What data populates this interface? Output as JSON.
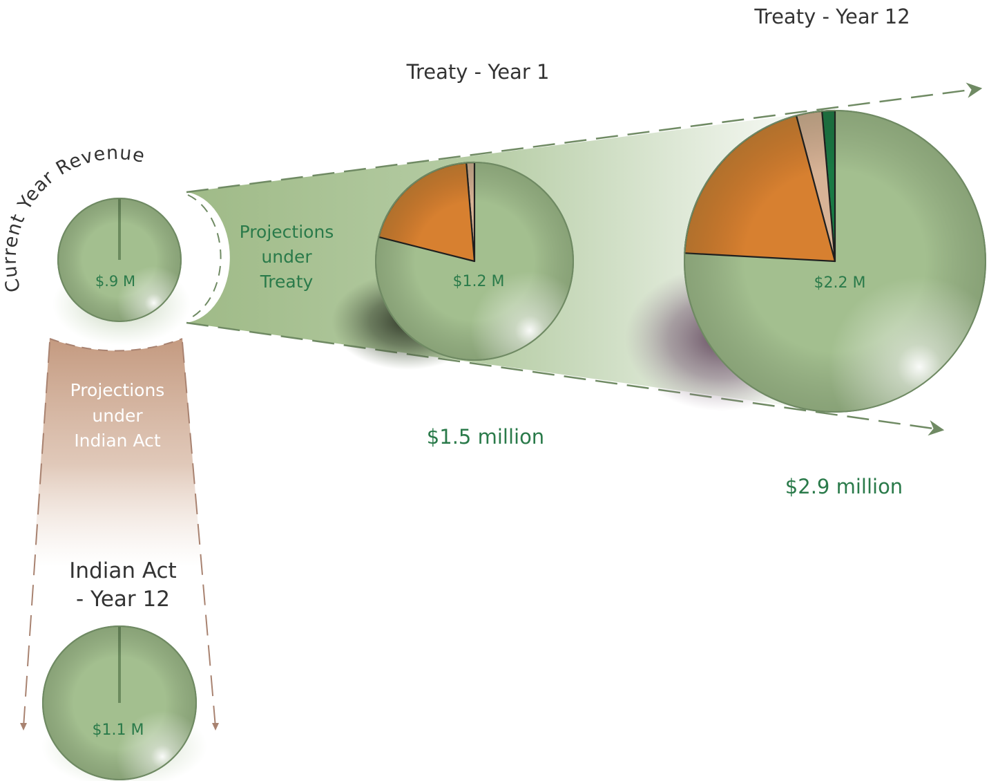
{
  "labels": {
    "current_year_revenue": "Current Year Revenue",
    "treaty_year_1": "Treaty - Year 1",
    "treaty_year_12": "Treaty - Year 12",
    "projections_treaty": [
      "Projections",
      "under",
      "Treaty"
    ],
    "projections_indian_act": [
      "Projections",
      "under",
      "Indian Act"
    ],
    "indian_act_year_12": [
      "Indian Act",
      "- Year 12"
    ],
    "treaty_year_1_total": "$1.5 million",
    "treaty_year_12_total": "$2.9 million"
  },
  "colors": {
    "main_green": "#a3bf8f",
    "orange": "#d78030",
    "tan": "#d8b396",
    "dark_green": "#1a7a45",
    "label_green": "#2a7a4a",
    "band_green": "#9fba87",
    "band_brown": "#c49a80",
    "dash_green": "#6f8a63",
    "dash_brown": "#a88270"
  },
  "chart_data": [
    {
      "type": "pie",
      "id": "current",
      "center_label": "$.9 M",
      "slices": [
        {
          "color": "main_green",
          "value": 0.9
        }
      ]
    },
    {
      "type": "pie",
      "id": "treaty_year_1",
      "center_label": "$1.2 M",
      "slices": [
        {
          "color": "main_green",
          "value": 1.2
        },
        {
          "color": "orange",
          "value": 0.3
        },
        {
          "color": "tan",
          "value": 0.02
        }
      ]
    },
    {
      "type": "pie",
      "id": "treaty_year_12",
      "center_label": "$2.2 M",
      "slices": [
        {
          "color": "main_green",
          "value": 2.2
        },
        {
          "color": "orange",
          "value": 0.58
        },
        {
          "color": "tan",
          "value": 0.08
        },
        {
          "color": "dark_green",
          "value": 0.04
        }
      ]
    },
    {
      "type": "pie",
      "id": "indian_act_year_12",
      "center_label": "$1.1 M",
      "slices": [
        {
          "color": "main_green",
          "value": 1.1
        }
      ]
    }
  ]
}
